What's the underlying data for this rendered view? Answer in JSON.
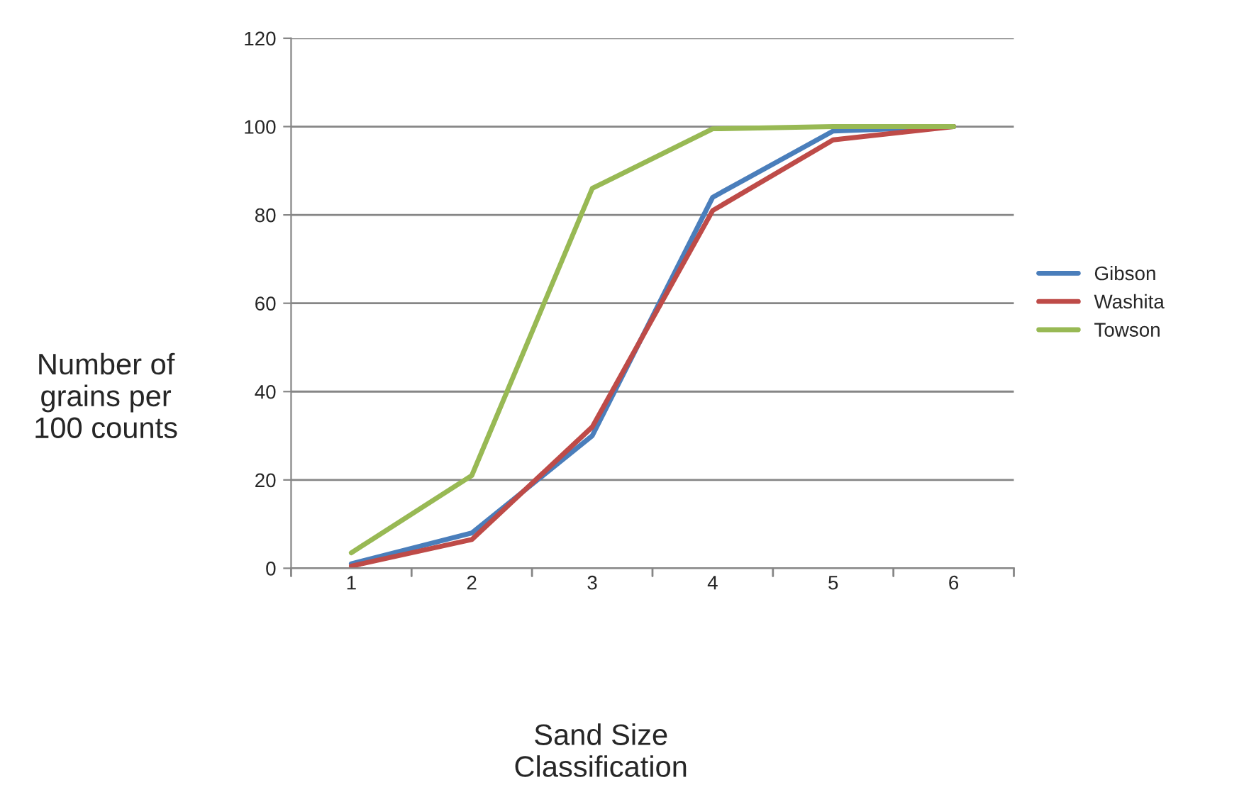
{
  "chart_data": {
    "type": "line",
    "xlabel": "Sand Size\nClassification",
    "ylabel": "Number of\ngrains per\n100 counts",
    "categories": [
      "1",
      "2",
      "3",
      "4",
      "5",
      "6"
    ],
    "series": [
      {
        "name": "Gibson",
        "color": "#4a7ebb",
        "values": [
          1,
          8,
          30,
          84,
          99,
          100
        ]
      },
      {
        "name": "Washita",
        "color": "#be4b48",
        "values": [
          0.5,
          6.5,
          32,
          81,
          97,
          100
        ]
      },
      {
        "name": "Towson",
        "color": "#98b954",
        "values": [
          3.5,
          21,
          86,
          99.5,
          100,
          100
        ]
      }
    ],
    "ylim": [
      0,
      120
    ],
    "yticks": [
      0,
      20,
      40,
      60,
      80,
      100,
      120
    ],
    "grid": "y",
    "legend": "right",
    "marker": "none",
    "line_style": "solid"
  }
}
